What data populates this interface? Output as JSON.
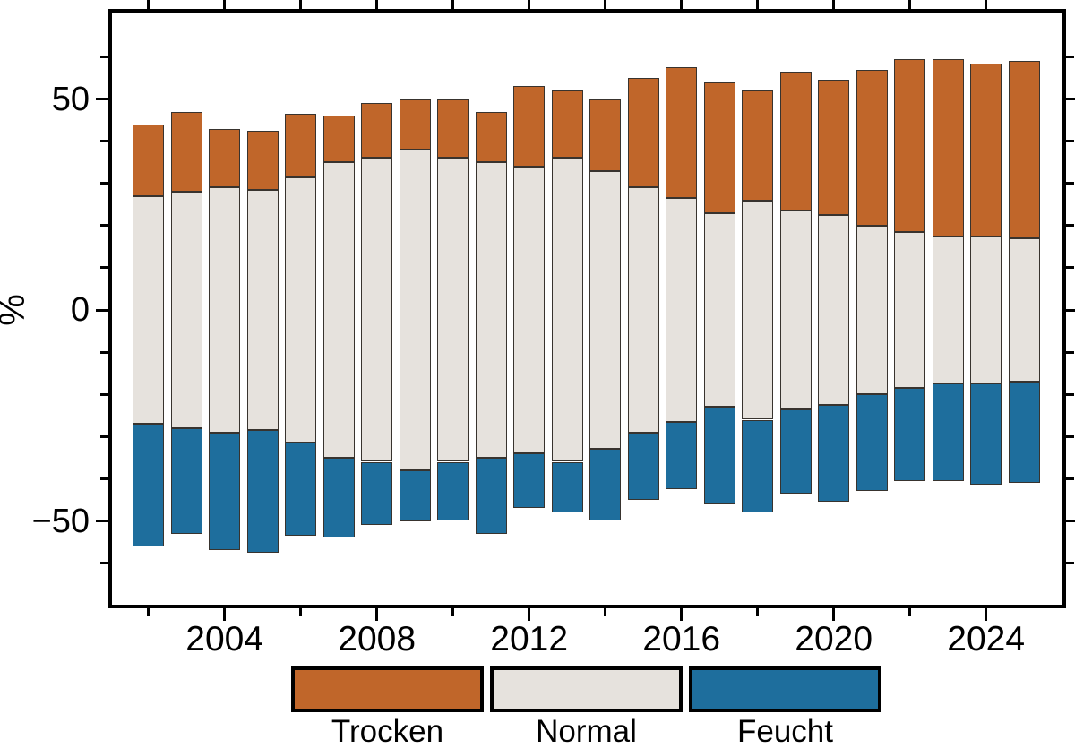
{
  "chart_data": {
    "type": "bar",
    "stacked": true,
    "diverging": true,
    "title": "",
    "xlabel": "",
    "ylabel": "%",
    "grid": false,
    "legend_position": "bottom",
    "ylim": [
      -71,
      72
    ],
    "categories": [
      2002,
      2003,
      2004,
      2005,
      2006,
      2007,
      2008,
      2009,
      2010,
      2011,
      2012,
      2013,
      2014,
      2015,
      2016,
      2017,
      2018,
      2019,
      2020,
      2021,
      2022,
      2023,
      2024,
      2025
    ],
    "series": [
      {
        "name": "Trocken",
        "color": "#c0662a",
        "values": [
          17,
          19,
          14,
          14,
          15,
          11,
          13,
          12,
          14,
          12,
          19,
          16,
          17,
          26,
          31,
          31,
          26,
          33,
          32,
          37,
          41,
          42,
          41,
          42
        ]
      },
      {
        "name": "Normal",
        "color": "#e6e2dd",
        "values": [
          54,
          56,
          58,
          57,
          63,
          70,
          72,
          76,
          72,
          70,
          68,
          72,
          66,
          58,
          53,
          46,
          52,
          47,
          45,
          40,
          37,
          35,
          35,
          34
        ]
      },
      {
        "name": "Feucht",
        "color": "#1e6e9d",
        "values": [
          29,
          25,
          28,
          29,
          22,
          19,
          15,
          12,
          14,
          18,
          13,
          12,
          17,
          16,
          16,
          23,
          22,
          20,
          23,
          23,
          22,
          23,
          24,
          24
        ]
      }
    ],
    "stacking_note": "Normal segment is centered on zero (half above, half below); Trocken stacks upward from Normal top; Feucht stacks downward from Normal bottom; each year totals 100 %",
    "y_major_ticks": [
      50,
      0,
      -50
    ],
    "y_major_tick_labels": [
      "50",
      "0",
      "−50"
    ],
    "y_minor_ticks": [
      60,
      40,
      30,
      20,
      10,
      -10,
      -20,
      -30,
      -40,
      -60
    ],
    "x_tick_years": [
      2002,
      2004,
      2006,
      2008,
      2010,
      2012,
      2014,
      2016,
      2018,
      2020,
      2022,
      2024
    ],
    "x_labeled_years": [
      2004,
      2008,
      2012,
      2016,
      2020,
      2024
    ],
    "legend_labels": [
      "Trocken",
      "Normal",
      "Feucht"
    ]
  }
}
